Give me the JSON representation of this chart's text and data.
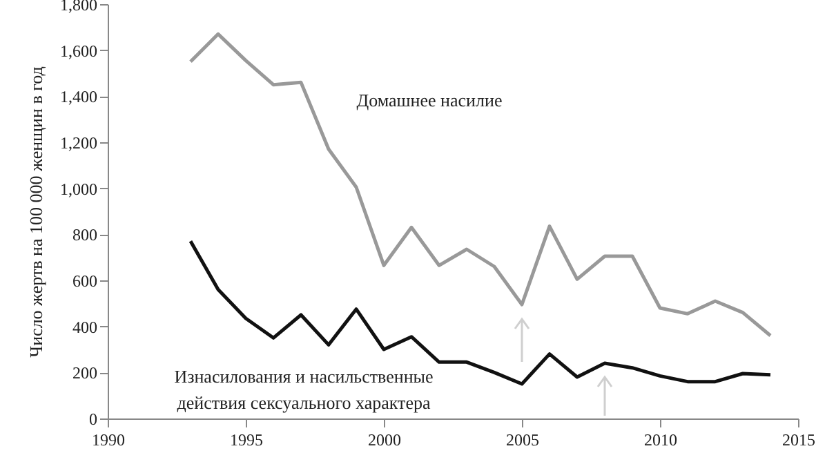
{
  "chart_data": {
    "type": "line",
    "ylabel": "Число жертв на 100 000 женщин в год",
    "x": [
      1993,
      1994,
      1995,
      1996,
      1997,
      1998,
      1999,
      2000,
      2001,
      2002,
      2003,
      2004,
      2005,
      2006,
      2007,
      2008,
      2009,
      2010,
      2011,
      2012,
      2013,
      2014
    ],
    "series": [
      {
        "name": "Домашнее насилие",
        "color": "#999999",
        "values": [
          1550,
          1670,
          1555,
          1450,
          1460,
          1170,
          1005,
          665,
          830,
          665,
          735,
          660,
          495,
          835,
          605,
          705,
          705,
          480,
          455,
          510,
          460,
          360
        ]
      },
      {
        "name": "Изнасилования и насильственные действия сексуального характера",
        "color": "#111111",
        "values": [
          770,
          560,
          435,
          350,
          450,
          320,
          475,
          300,
          355,
          245,
          245,
          200,
          150,
          280,
          180,
          240,
          220,
          185,
          160,
          160,
          195,
          190
        ]
      }
    ],
    "xlim": [
      1990,
      2015
    ],
    "xticks": [
      1990,
      1995,
      2000,
      2005,
      2010,
      2015
    ],
    "ylim": [
      0,
      1800
    ],
    "yticks": [
      0,
      {
        "value": 200,
        "label": "200"
      },
      {
        "value": 400,
        "label": "400"
      },
      {
        "value": 600,
        "label": "600"
      },
      {
        "value": 800,
        "label": "800"
      },
      {
        "value": 1000,
        "label": "1,000"
      },
      {
        "value": 1200,
        "label": "1,200"
      },
      {
        "value": 1400,
        "label": "1,400"
      },
      {
        "value": 1600,
        "label": "1,600"
      },
      {
        "value": 1800,
        "label": "1,800"
      }
    ],
    "grid": false,
    "marker": "none",
    "line_style": "solid"
  }
}
